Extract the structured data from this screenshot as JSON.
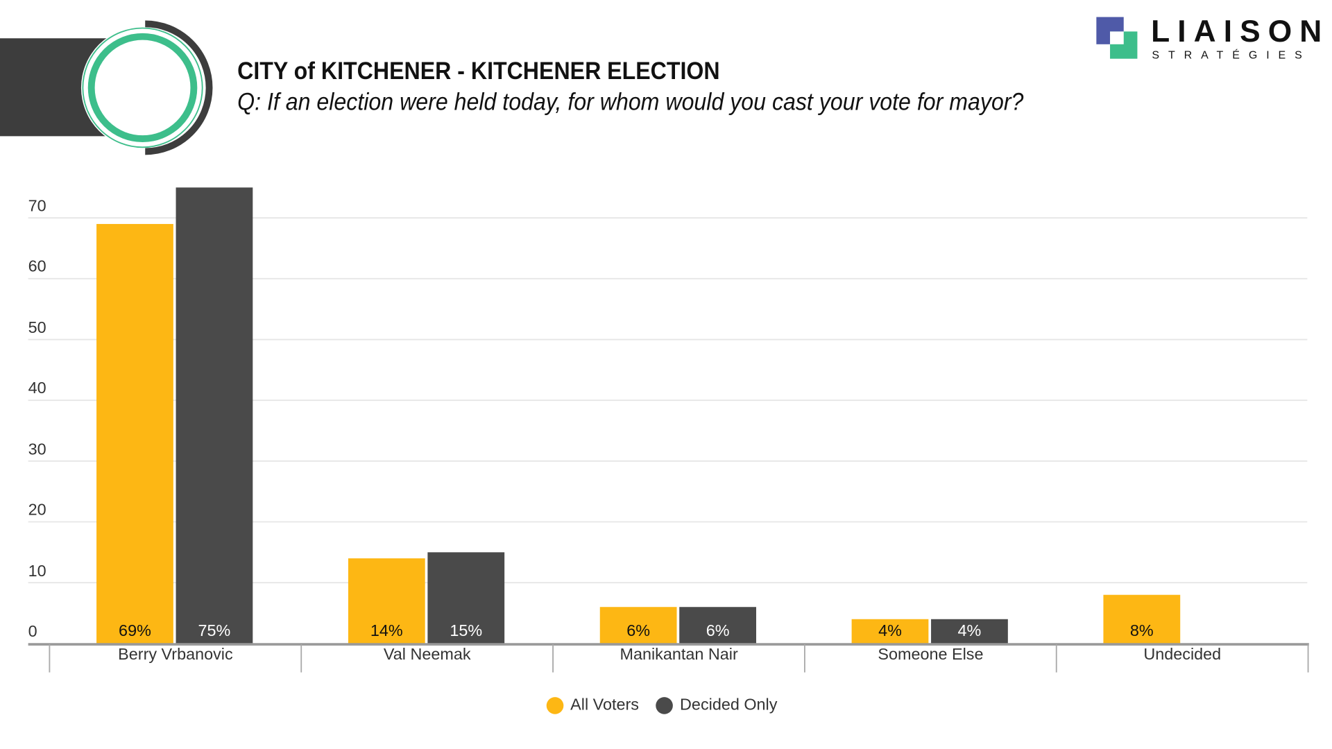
{
  "header": {
    "title": "CITY of KITCHENER - KITCHENER ELECTION",
    "subtitle": "Q: If an election were held today, for whom would you cast your vote for mayor?",
    "logo_text": "LIAISON",
    "logo_subtext": "STRATÉGIES"
  },
  "colors": {
    "all_voters": "#FDB714",
    "decided_only": "#4A4A4A",
    "accent_green": "#3DBE8B",
    "logo_blue": "#4F5AA8"
  },
  "chart_data": {
    "type": "bar",
    "title": "CITY of KITCHENER - KITCHENER ELECTION",
    "subtitle": "Q: If an election were held today, for whom would you cast your vote for mayor?",
    "categories": [
      "Berry Vrbanovic",
      "Val Neemak",
      "Manikantan Nair",
      "Someone Else",
      "Undecided"
    ],
    "series": [
      {
        "name": "All Voters",
        "values": [
          69,
          14,
          6,
          4,
          8
        ],
        "labels": [
          "69%",
          "14%",
          "6%",
          "4%",
          "8%"
        ]
      },
      {
        "name": "Decided Only",
        "values": [
          75,
          15,
          6,
          4,
          null
        ],
        "labels": [
          "75%",
          "15%",
          "6%",
          "4%",
          ""
        ]
      }
    ],
    "yticks": [
      "0",
      "10",
      "20",
      "30",
      "40",
      "50",
      "60",
      "70"
    ],
    "ylim": [
      0,
      75
    ],
    "grid": true,
    "legend": "bottom-center"
  }
}
